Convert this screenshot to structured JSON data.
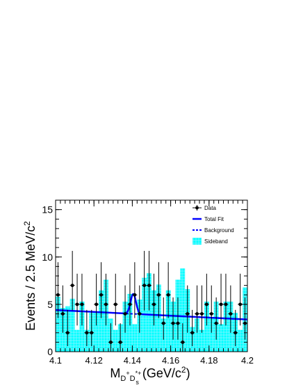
{
  "chart_data": {
    "type": "histogram",
    "title": "",
    "xlabel": {
      "main": "M",
      "sub": "D",
      "sup1": "+",
      "sub2": "D",
      "sup2": "*+",
      "sub3": "s",
      "tail": " (GeV/c",
      "tailsup": "2",
      "close": ")"
    },
    "ylabel": {
      "main": "Events / 2.5 MeV/c",
      "sup": "2"
    },
    "xlim": [
      4.1,
      4.2
    ],
    "ylim": [
      0,
      16
    ],
    "xticks": [
      "4.1",
      "4.12",
      "4.14",
      "4.16",
      "4.18",
      "4.2"
    ],
    "xtick_values": [
      4.1,
      4.12,
      4.14,
      4.16,
      4.18,
      4.2
    ],
    "yticks": [
      "0",
      "5",
      "10",
      "15"
    ],
    "ytick_values": [
      0,
      5,
      10,
      15
    ],
    "bin_width": 0.0025,
    "data_points": [
      {
        "x": 4.10125,
        "y": 6
      },
      {
        "x": 4.10375,
        "y": 4
      },
      {
        "x": 4.10625,
        "y": 2
      },
      {
        "x": 4.10875,
        "y": 7
      },
      {
        "x": 4.11125,
        "y": 5
      },
      {
        "x": 4.11375,
        "y": 5
      },
      {
        "x": 4.11625,
        "y": 2
      },
      {
        "x": 4.11875,
        "y": 2
      },
      {
        "x": 4.12125,
        "y": 5
      },
      {
        "x": 4.12375,
        "y": 6
      },
      {
        "x": 4.12625,
        "y": 5
      },
      {
        "x": 4.12875,
        "y": 1
      },
      {
        "x": 4.13125,
        "y": 5
      },
      {
        "x": 4.13375,
        "y": 1
      },
      {
        "x": 4.13625,
        "y": 4
      },
      {
        "x": 4.13875,
        "y": 5
      },
      {
        "x": 4.14125,
        "y": 6
      },
      {
        "x": 4.14375,
        "y": 4
      },
      {
        "x": 4.14625,
        "y": 7
      },
      {
        "x": 4.14875,
        "y": 7
      },
      {
        "x": 4.15125,
        "y": 5
      },
      {
        "x": 4.15375,
        "y": 6
      },
      {
        "x": 4.15625,
        "y": 3
      },
      {
        "x": 4.15875,
        "y": 6
      },
      {
        "x": 4.16125,
        "y": 3
      },
      {
        "x": 4.16375,
        "y": 3
      },
      {
        "x": 4.16625,
        "y": 1
      },
      {
        "x": 4.16875,
        "y": 4
      },
      {
        "x": 4.17125,
        "y": 2
      },
      {
        "x": 4.17375,
        "y": 4
      },
      {
        "x": 4.17625,
        "y": 4
      },
      {
        "x": 4.17875,
        "y": 5
      },
      {
        "x": 4.18125,
        "y": 4
      },
      {
        "x": 4.18375,
        "y": 3
      },
      {
        "x": 4.18625,
        "y": 5
      },
      {
        "x": 4.18875,
        "y": 5
      },
      {
        "x": 4.19125,
        "y": 4
      },
      {
        "x": 4.19375,
        "y": 2
      },
      {
        "x": 4.19625,
        "y": 5
      },
      {
        "x": 4.19875,
        "y": 3
      }
    ],
    "sideband_values": [
      5.8,
      4.6,
      4.8,
      5.6,
      2.3,
      5.3,
      2.3,
      4.1,
      4.1,
      6.5,
      7.6,
      3.5,
      2.3,
      2.9,
      5.3,
      6.1,
      2.9,
      5.5,
      7.8,
      8.3,
      6.5,
      7.1,
      3.5,
      6.5,
      5.3,
      7.6,
      8.8,
      6.6,
      2.6,
      3.5,
      2.3,
      5.3,
      3.5,
      5.3,
      2.9,
      5.3,
      5.3,
      4.1,
      2.3,
      6.8
    ],
    "background": {
      "y_start": 4.4,
      "y_end": 3.4
    },
    "total_fit_peak": {
      "mass": 4.1405,
      "width": 0.0014,
      "amplitude": 2.1
    },
    "legend_position": "top-right",
    "legend": [
      {
        "label": "Data",
        "style": "marker-errorbar",
        "color": "#000000"
      },
      {
        "label": "Total Fit",
        "style": "solid-line",
        "color": "#0000ff"
      },
      {
        "label": "Background",
        "style": "dashed-line",
        "color": "#0000ff"
      },
      {
        "label": "Sideband",
        "style": "filled-hatch",
        "color": "#00ffff"
      }
    ]
  }
}
